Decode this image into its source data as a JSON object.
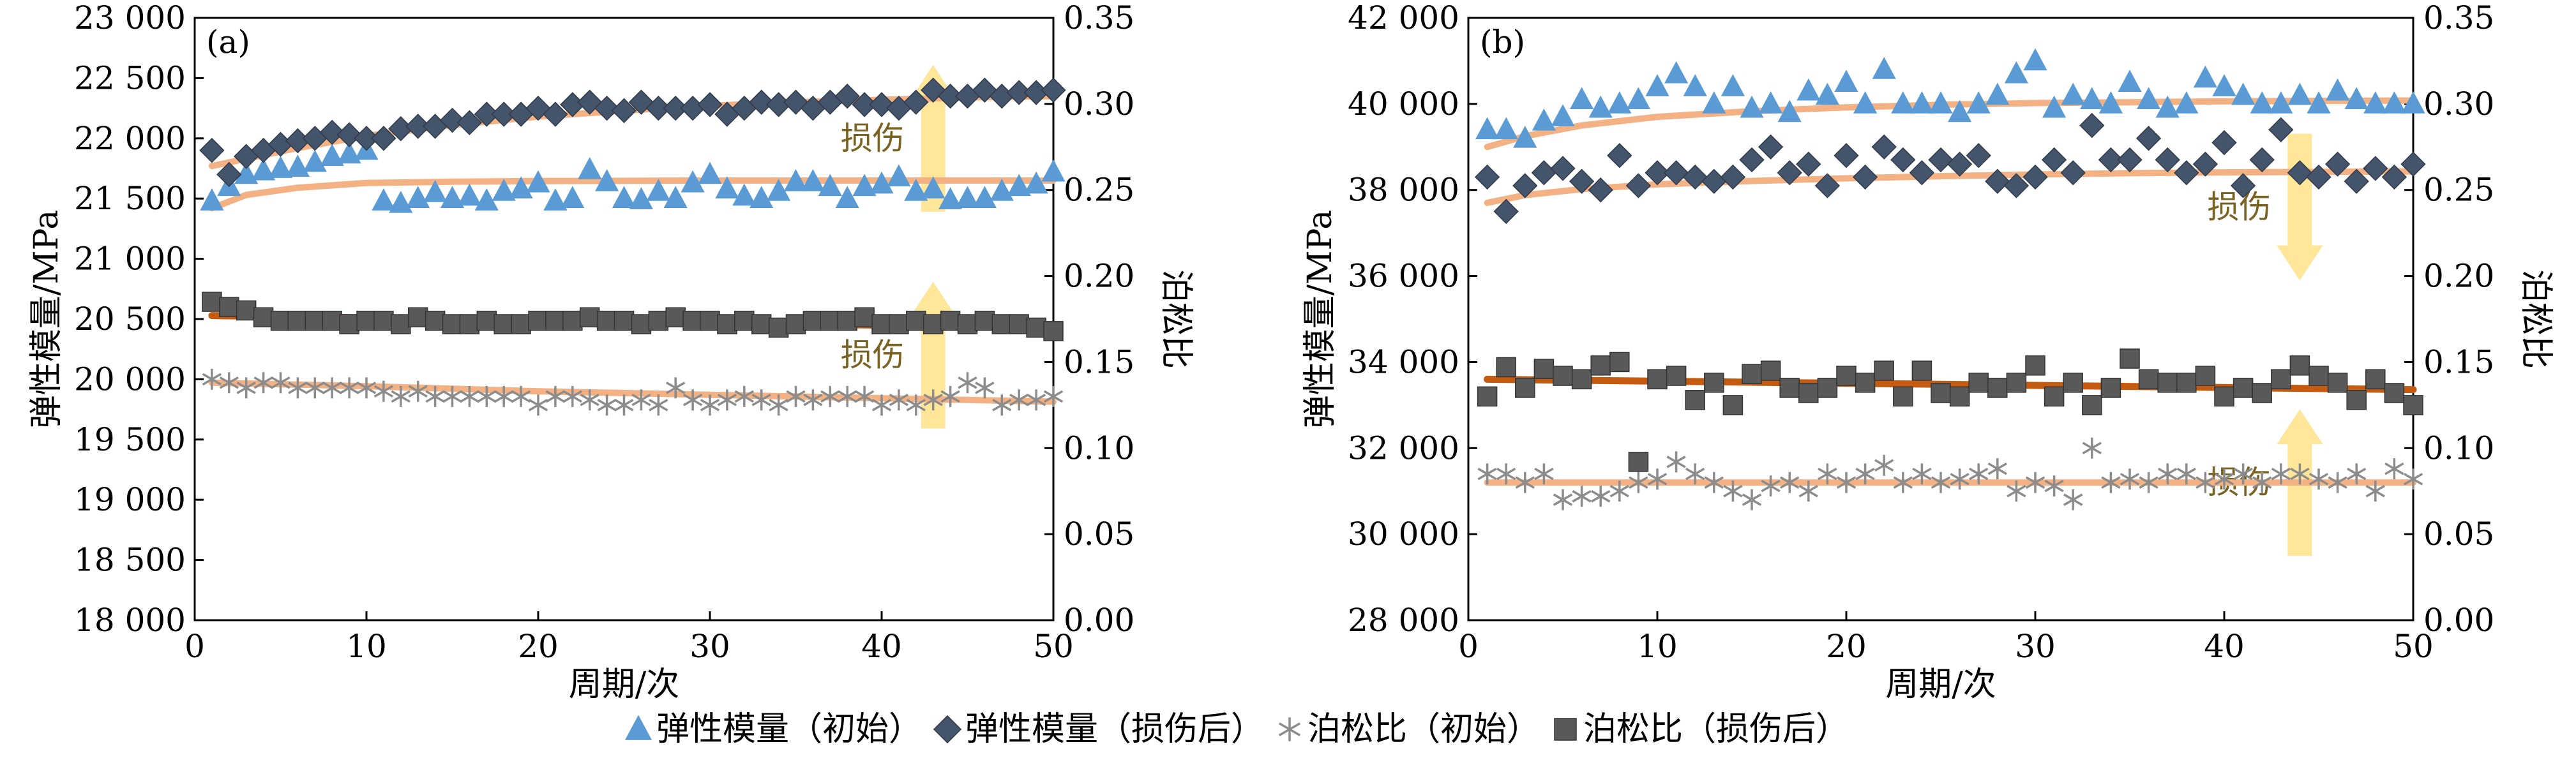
{
  "legend": {
    "items": [
      {
        "label": "弹性模量（初始）",
        "marker": "triangle",
        "color": "#5b9bd5"
      },
      {
        "label": "弹性模量（损伤后）",
        "marker": "diamond",
        "color": "#44546a"
      },
      {
        "label": "泊松比（初始）",
        "marker": "asterisk",
        "color": "#8c8c8c"
      },
      {
        "label": "泊松比（损伤后）",
        "marker": "square",
        "color": "#595959"
      }
    ]
  },
  "colors": {
    "fit_light": "#f4b183",
    "fit_dark": "#c55a11",
    "arrow": "#ffe699",
    "annotation": "#7a6220"
  },
  "chart_data": [
    {
      "type": "scatter",
      "panel": "(a)",
      "xlabel": "周期/次",
      "ylabel": "弹性模量/MPa",
      "y2label": "泊松比",
      "xlim": [
        0,
        50
      ],
      "ylim": [
        18000,
        23000
      ],
      "y2lim": [
        0.0,
        0.35
      ],
      "xticks": [
        "0",
        "10",
        "20",
        "30",
        "40",
        "50"
      ],
      "yticks": [
        "18 000",
        "18 500",
        "19 000",
        "19 500",
        "20 000",
        "20 500",
        "21 000",
        "21 500",
        "22 000",
        "22 500",
        "23 000"
      ],
      "y2ticks": [
        "0.00",
        "0.05",
        "0.10",
        "0.15",
        "0.20",
        "0.25",
        "0.30",
        "0.35"
      ],
      "annotations": [
        {
          "text": "损伤",
          "x": 43,
          "y": 22000,
          "direction": "up"
        },
        {
          "text": "损伤",
          "x": 43,
          "y": 20200,
          "direction": "up"
        }
      ],
      "x": [
        1,
        2,
        3,
        4,
        5,
        6,
        7,
        8,
        9,
        10,
        11,
        12,
        13,
        14,
        15,
        16,
        17,
        18,
        19,
        20,
        21,
        22,
        23,
        24,
        25,
        26,
        27,
        28,
        29,
        30,
        31,
        32,
        33,
        34,
        35,
        36,
        37,
        38,
        39,
        40,
        41,
        42,
        43,
        44,
        45,
        46,
        47,
        48,
        49,
        50
      ],
      "series": [
        {
          "name": "弹性模量（初始）",
          "axis": "left",
          "marker": "triangle",
          "values": [
            21480,
            21600,
            21700,
            21730,
            21750,
            21760,
            21800,
            21850,
            21870,
            21900,
            21480,
            21460,
            21500,
            21550,
            21500,
            21520,
            21480,
            21560,
            21580,
            21630,
            21480,
            21500,
            21740,
            21640,
            21500,
            21490,
            21560,
            21500,
            21630,
            21700,
            21580,
            21520,
            21500,
            21560,
            21640,
            21640,
            21600,
            21500,
            21600,
            21620,
            21680,
            21560,
            21580,
            21490,
            21500,
            21500,
            21560,
            21600,
            21620,
            21720
          ]
        },
        {
          "name": "弹性模量（损伤后）",
          "axis": "left",
          "marker": "diamond",
          "values": [
            21900,
            21700,
            21850,
            21900,
            21950,
            21980,
            22000,
            22050,
            22030,
            22000,
            22000,
            22080,
            22100,
            22100,
            22150,
            22130,
            22200,
            22200,
            22200,
            22250,
            22200,
            22280,
            22300,
            22250,
            22230,
            22300,
            22250,
            22250,
            22250,
            22280,
            22200,
            22250,
            22300,
            22280,
            22300,
            22250,
            22300,
            22350,
            22280,
            22280,
            22250,
            22300,
            22400,
            22350,
            22350,
            22400,
            22350,
            22380,
            22380,
            22400
          ]
        },
        {
          "name": "泊松比（初始）",
          "axis": "right",
          "marker": "asterisk",
          "values": [
            0.14,
            0.138,
            0.135,
            0.138,
            0.138,
            0.135,
            0.135,
            0.135,
            0.135,
            0.135,
            0.133,
            0.13,
            0.133,
            0.13,
            0.13,
            0.13,
            0.13,
            0.13,
            0.13,
            0.125,
            0.13,
            0.13,
            0.128,
            0.125,
            0.125,
            0.128,
            0.125,
            0.135,
            0.128,
            0.125,
            0.128,
            0.13,
            0.128,
            0.125,
            0.13,
            0.128,
            0.13,
            0.13,
            0.13,
            0.125,
            0.128,
            0.125,
            0.128,
            0.13,
            0.138,
            0.135,
            0.125,
            0.128,
            0.128,
            0.13
          ]
        },
        {
          "name": "泊松比（损伤后）",
          "axis": "right",
          "marker": "square",
          "values": [
            0.185,
            0.182,
            0.18,
            0.176,
            0.174,
            0.174,
            0.174,
            0.174,
            0.172,
            0.174,
            0.174,
            0.172,
            0.176,
            0.174,
            0.172,
            0.172,
            0.174,
            0.172,
            0.172,
            0.174,
            0.174,
            0.174,
            0.176,
            0.174,
            0.174,
            0.172,
            0.174,
            0.176,
            0.174,
            0.174,
            0.172,
            0.174,
            0.172,
            0.17,
            0.172,
            0.174,
            0.174,
            0.174,
            0.176,
            0.172,
            0.172,
            0.174,
            0.172,
            0.174,
            0.172,
            0.174,
            0.172,
            0.172,
            0.17,
            0.168
          ]
        }
      ],
      "fits": [
        {
          "for": "弹性模量（初始）",
          "axis": "left",
          "style": "light",
          "x": [
            1,
            3,
            6,
            10,
            15,
            20,
            30,
            40,
            50
          ],
          "y": [
            21420,
            21530,
            21590,
            21630,
            21640,
            21645,
            21650,
            21650,
            21650
          ]
        },
        {
          "for": "弹性模量（损伤后）",
          "axis": "left",
          "style": "light",
          "x": [
            1,
            3,
            6,
            10,
            15,
            20,
            25,
            30,
            35,
            40,
            45,
            50
          ],
          "y": [
            21770,
            21830,
            21920,
            22020,
            22110,
            22180,
            22230,
            22270,
            22300,
            22320,
            22340,
            22350
          ]
        },
        {
          "for": "泊松比（损伤后）",
          "axis": "right",
          "style": "dark",
          "x": [
            1,
            50
          ],
          "y": [
            0.177,
            0.17
          ]
        },
        {
          "for": "泊松比（初始）",
          "axis": "right",
          "style": "light",
          "x": [
            1,
            10,
            20,
            30,
            40,
            50
          ],
          "y": [
            0.138,
            0.136,
            0.133,
            0.131,
            0.129,
            0.127
          ]
        }
      ]
    },
    {
      "type": "scatter",
      "panel": "(b)",
      "xlabel": "周期/次",
      "ylabel": "弹性模量/MPa",
      "y2label": "泊松比",
      "xlim": [
        0,
        50
      ],
      "ylim": [
        28000,
        42000
      ],
      "y2lim": [
        0.0,
        0.35
      ],
      "xticks": [
        "0",
        "10",
        "20",
        "30",
        "40",
        "50"
      ],
      "yticks": [
        "28 000",
        "30 000",
        "32 000",
        "34 000",
        "36 000",
        "38 000",
        "40 000",
        "42 000"
      ],
      "y2ticks": [
        "0.00",
        "0.05",
        "0.10",
        "0.15",
        "0.20",
        "0.25",
        "0.30",
        "0.35"
      ],
      "annotations": [
        {
          "text": "损伤",
          "x": 44,
          "y": 37600,
          "direction": "down"
        },
        {
          "text": "损伤",
          "x": 44,
          "y": 31200,
          "direction": "up"
        }
      ],
      "x": [
        1,
        2,
        3,
        4,
        5,
        6,
        7,
        8,
        9,
        10,
        11,
        12,
        13,
        14,
        15,
        16,
        17,
        18,
        19,
        20,
        21,
        22,
        23,
        24,
        25,
        26,
        27,
        28,
        29,
        30,
        31,
        32,
        33,
        34,
        35,
        36,
        37,
        38,
        39,
        40,
        41,
        42,
        43,
        44,
        45,
        46,
        47,
        48,
        49,
        50
      ],
      "series": [
        {
          "name": "弹性模量（初始）",
          "axis": "left",
          "marker": "triangle",
          "values": [
            39400,
            39400,
            39200,
            39600,
            39700,
            40100,
            39900,
            40000,
            40100,
            40400,
            40700,
            40400,
            40000,
            40400,
            39900,
            40000,
            39800,
            40300,
            40200,
            40500,
            40000,
            40800,
            40000,
            40000,
            40000,
            39800,
            40000,
            40200,
            40700,
            41000,
            39900,
            40200,
            40100,
            40000,
            40500,
            40100,
            39900,
            40000,
            40600,
            40400,
            40200,
            40000,
            40000,
            40200,
            40000,
            40300,
            40100,
            40000,
            40000,
            40000
          ]
        },
        {
          "name": "弹性模量（损伤后）",
          "axis": "left",
          "marker": "diamond",
          "values": [
            38300,
            37500,
            38100,
            38400,
            38500,
            38200,
            38000,
            38800,
            38100,
            38400,
            38400,
            38300,
            38200,
            38300,
            38700,
            39000,
            38400,
            38600,
            38100,
            38800,
            38300,
            39000,
            38700,
            38400,
            38700,
            38600,
            38800,
            38200,
            38100,
            38300,
            38700,
            38400,
            39500,
            38700,
            38700,
            39200,
            38700,
            38400,
            38600,
            39100,
            38100,
            38700,
            39400,
            38400,
            38300,
            38600,
            38200,
            38500,
            38300,
            38600
          ]
        },
        {
          "name": "泊松比（初始）",
          "axis": "right",
          "marker": "asterisk",
          "values": [
            0.085,
            0.085,
            0.08,
            0.085,
            0.07,
            0.072,
            0.072,
            0.075,
            0.08,
            0.082,
            0.092,
            0.085,
            0.08,
            0.075,
            0.07,
            0.078,
            0.08,
            0.075,
            0.085,
            0.08,
            0.085,
            0.09,
            0.08,
            0.085,
            0.08,
            0.082,
            0.085,
            0.088,
            0.075,
            0.08,
            0.078,
            0.07,
            0.1,
            0.08,
            0.082,
            0.08,
            0.085,
            0.085,
            0.08,
            0.082,
            0.085,
            0.08,
            0.085,
            0.085,
            0.082,
            0.08,
            0.085,
            0.075,
            0.088,
            0.082
          ]
        },
        {
          "name": "泊松比（损伤后）",
          "axis": "right",
          "marker": "square",
          "values": [
            0.13,
            0.147,
            0.135,
            0.146,
            0.142,
            0.14,
            0.148,
            0.15,
            0.092,
            0.14,
            0.142,
            0.128,
            0.138,
            0.125,
            0.143,
            0.145,
            0.135,
            0.132,
            0.135,
            0.142,
            0.138,
            0.145,
            0.13,
            0.145,
            0.132,
            0.13,
            0.138,
            0.135,
            0.138,
            0.148,
            0.13,
            0.138,
            0.125,
            0.135,
            0.152,
            0.14,
            0.138,
            0.138,
            0.142,
            0.13,
            0.135,
            0.132,
            0.14,
            0.148,
            0.142,
            0.138,
            0.128,
            0.14,
            0.132,
            0.125
          ]
        }
      ],
      "fits": [
        {
          "for": "弹性模量（初始）",
          "axis": "left",
          "style": "light",
          "x": [
            1,
            3,
            6,
            10,
            15,
            20,
            25,
            30,
            35,
            40,
            45,
            50
          ],
          "y": [
            39000,
            39250,
            39500,
            39700,
            39830,
            39920,
            39980,
            40020,
            40040,
            40060,
            40070,
            40080
          ]
        },
        {
          "for": "弹性模量（损伤后）",
          "axis": "left",
          "style": "light",
          "x": [
            1,
            3,
            6,
            10,
            15,
            20,
            25,
            30,
            35,
            40,
            45,
            50
          ],
          "y": [
            37700,
            37880,
            38020,
            38130,
            38210,
            38270,
            38320,
            38360,
            38390,
            38410,
            38420,
            38430
          ]
        },
        {
          "for": "泊松比（损伤后）",
          "axis": "right",
          "style": "dark",
          "x": [
            1,
            50
          ],
          "y": [
            0.14,
            0.134
          ]
        },
        {
          "for": "泊松比（初始）",
          "axis": "right",
          "style": "light",
          "x": [
            1,
            50
          ],
          "y": [
            0.08,
            0.08
          ]
        }
      ]
    }
  ]
}
